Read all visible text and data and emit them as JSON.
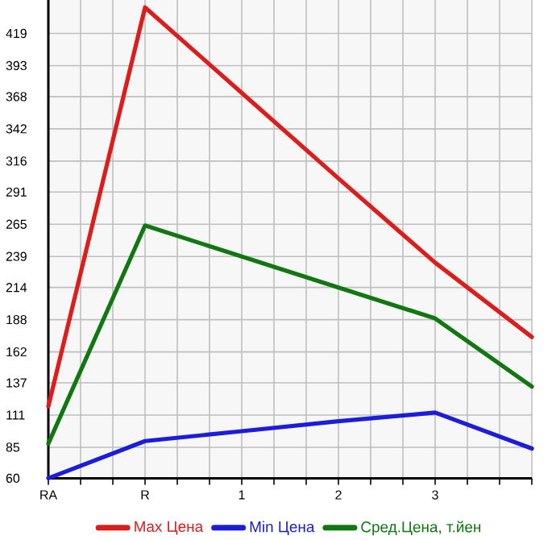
{
  "chart_data": {
    "type": "line",
    "categories": [
      "RA",
      "R",
      "1",
      "2",
      "3",
      null
    ],
    "series": [
      {
        "name": "Max Цена",
        "color": "#dd1c1c",
        "values": [
          118,
          440,
          371,
          302,
          234,
          174
        ]
      },
      {
        "name": "Min Цена",
        "color": "#1c1cdd",
        "values": [
          60,
          90,
          98,
          106,
          113,
          84
        ]
      },
      {
        "name": "Сред.Цена, т.йен",
        "color": "#117711",
        "values": [
          88,
          264,
          239,
          214,
          189,
          134
        ]
      }
    ],
    "ylim": [
      60,
      446
    ],
    "yticks": [
      60,
      85,
      111,
      137,
      162,
      188,
      214,
      239,
      265,
      291,
      316,
      342,
      368,
      393,
      419
    ],
    "grid": true,
    "legend": "bottom",
    "marker": "none",
    "line_style": "solid"
  }
}
